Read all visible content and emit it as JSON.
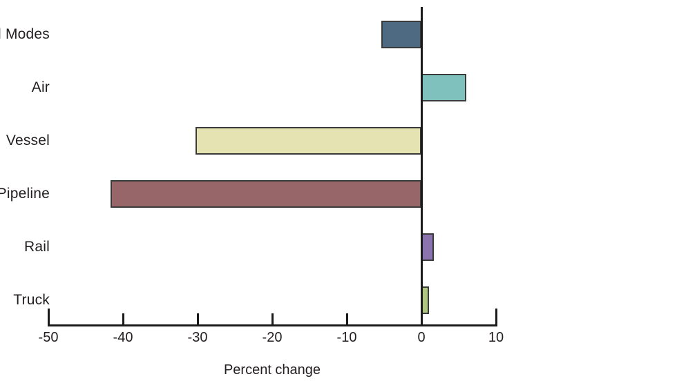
{
  "chart_data": {
    "type": "bar",
    "orientation": "horizontal",
    "title": "",
    "xlabel": "Percent change",
    "ylabel": "",
    "categories": [
      "All Modes",
      "Air",
      "Vessel",
      "Pipeline",
      "Rail",
      "Truck"
    ],
    "values": [
      -5.4,
      6.0,
      -30.3,
      -41.7,
      1.7,
      1.0
    ],
    "bar_colors": [
      "#4d6a82",
      "#7fc2bd",
      "#e5e3b2",
      "#976668",
      "#8b74ae",
      "#aec67f"
    ],
    "bar_border_color": "#3a3a3a",
    "axis_color": "#1a1a1a",
    "text_color": "#231f20",
    "xlim": [
      -50,
      10
    ],
    "xticks": [
      -50,
      -40,
      -30,
      -20,
      -10,
      0,
      10
    ],
    "grid": false,
    "legend": false
  }
}
